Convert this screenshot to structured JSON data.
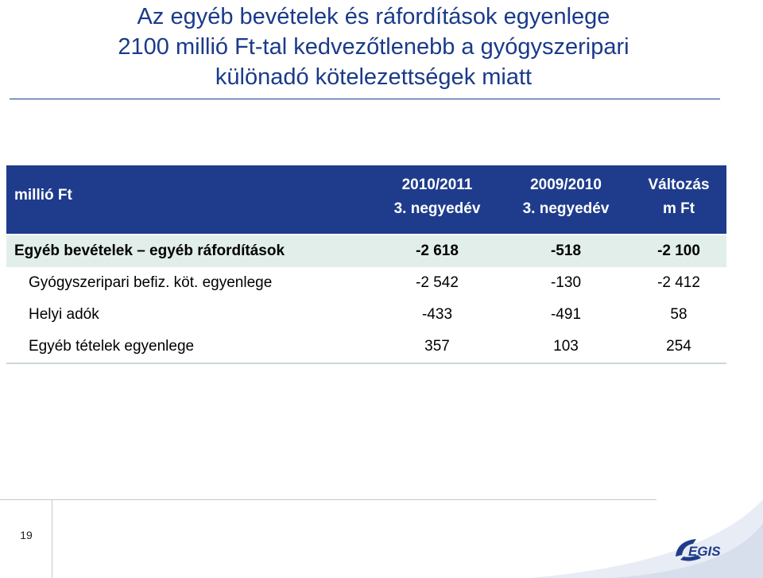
{
  "slide": {
    "title_lines": [
      "Az egyéb bevételek és ráfordítások egyenlege",
      "2100 millió Ft-tal kedvezőtlenebb a gyógyszeripari",
      "különadó kötelezettségek miatt"
    ],
    "page_number": "19"
  },
  "table": {
    "unit": "millió Ft",
    "columns": [
      {
        "line1": "2010/2011",
        "line2": "3. negyedév"
      },
      {
        "line1": "2009/2010",
        "line2": "3. negyedév"
      },
      {
        "line1": "Változás",
        "line2": "m Ft"
      }
    ],
    "rows": [
      {
        "label": "Egyéb bevételek – egyéb ráfordítások",
        "values": [
          "-2 618",
          "-518",
          "-2 100"
        ]
      },
      {
        "label": "Gyógyszeripari befiz. köt. egyenlege",
        "values": [
          "-2 542",
          "-130",
          "-2 412"
        ]
      },
      {
        "label": "Helyi adók",
        "values": [
          "-433",
          "-491",
          "58"
        ]
      },
      {
        "label": "Egyéb tételek egyenlege",
        "values": [
          "357",
          "103",
          "254"
        ]
      }
    ]
  },
  "logo": {
    "text": "EGIS",
    "color": "#1f3c8c"
  },
  "colors": {
    "title": "#1a3a8a",
    "header_bg": "#1f3c8c",
    "total_row_bg": "#e1eeea"
  }
}
